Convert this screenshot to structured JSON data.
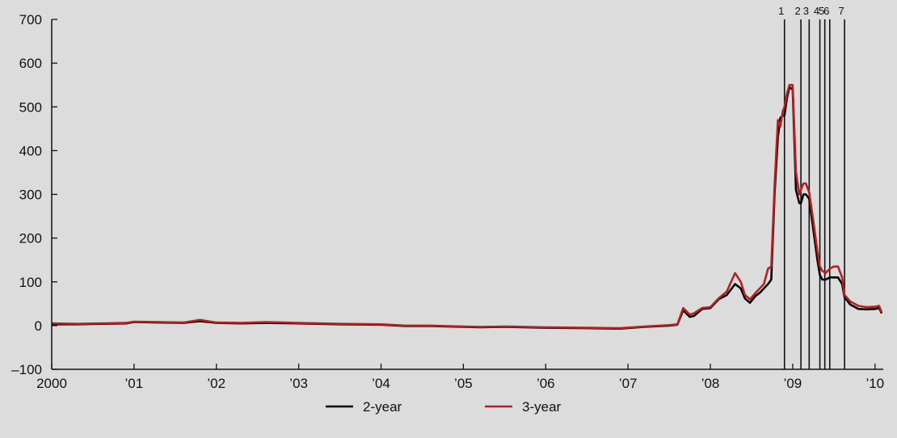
{
  "chart_data": {
    "type": "line",
    "title": "",
    "xlabel": "",
    "ylabel": "",
    "ylim": [
      -100,
      700
    ],
    "y_ticks": [
      "700",
      "600",
      "500",
      "400",
      "300",
      "200",
      "100",
      "0",
      "–100"
    ],
    "x_ticks": [
      "2000",
      "’01",
      "’02",
      "’03",
      "’04",
      "’05",
      "’06",
      "’07",
      "’08",
      "’09",
      "’10"
    ],
    "xlim": [
      2000.0,
      2010.1
    ],
    "grid": false,
    "legend_position": "bottom-center",
    "event_lines": [
      {
        "label": "1",
        "x": 2008.9
      },
      {
        "label": "2",
        "x": 2009.1
      },
      {
        "label": "3",
        "x": 2009.2
      },
      {
        "label": "4",
        "x": 2009.33
      },
      {
        "label": "5",
        "x": 2009.39
      },
      {
        "label": "6",
        "x": 2009.45
      },
      {
        "label": "7",
        "x": 2009.63
      }
    ],
    "series": [
      {
        "name": "2-year",
        "color": "#000000",
        "x": [
          2000.0,
          2000.3,
          2000.6,
          2000.9,
          2001.0,
          2001.3,
          2001.6,
          2001.7,
          2001.8,
          2001.9,
          2002.0,
          2002.3,
          2002.6,
          2003.0,
          2003.5,
          2004.0,
          2004.3,
          2004.6,
          2005.0,
          2005.2,
          2005.5,
          2006.0,
          2006.5,
          2006.9,
          2007.2,
          2007.5,
          2007.6,
          2007.67,
          2007.75,
          2007.8,
          2007.9,
          2008.0,
          2008.1,
          2008.2,
          2008.3,
          2008.37,
          2008.42,
          2008.48,
          2008.55,
          2008.6,
          2008.65,
          2008.7,
          2008.74,
          2008.78,
          2008.82,
          2008.85,
          2008.88,
          2008.9,
          2008.93,
          2008.96,
          2009.0,
          2009.04,
          2009.08,
          2009.1,
          2009.13,
          2009.16,
          2009.2,
          2009.25,
          2009.3,
          2009.33,
          2009.36,
          2009.4,
          2009.45,
          2009.5,
          2009.55,
          2009.6,
          2009.63,
          2009.7,
          2009.8,
          2009.9,
          2010.0,
          2010.05,
          2010.08
        ],
        "values": [
          3,
          3,
          4,
          5,
          8,
          7,
          6,
          8,
          10,
          8,
          6,
          5,
          6,
          5,
          3,
          2,
          -1,
          -1,
          -3,
          -4,
          -3,
          -5,
          -6,
          -7,
          -3,
          0,
          2,
          35,
          20,
          22,
          38,
          40,
          60,
          70,
          95,
          85,
          62,
          52,
          68,
          75,
          85,
          95,
          105,
          300,
          430,
          475,
          480,
          480,
          520,
          545,
          540,
          310,
          280,
          280,
          300,
          300,
          290,
          220,
          150,
          115,
          105,
          105,
          110,
          110,
          110,
          95,
          65,
          48,
          38,
          37,
          38,
          40,
          28
        ]
      },
      {
        "name": "3-year",
        "color": "#b22222",
        "x": [
          2000.0,
          2000.3,
          2000.6,
          2000.9,
          2001.0,
          2001.3,
          2001.6,
          2001.7,
          2001.8,
          2001.9,
          2002.0,
          2002.3,
          2002.6,
          2003.0,
          2003.5,
          2004.0,
          2004.3,
          2004.6,
          2005.0,
          2005.2,
          2005.5,
          2006.0,
          2006.5,
          2006.9,
          2007.2,
          2007.5,
          2007.6,
          2007.67,
          2007.75,
          2007.8,
          2007.9,
          2008.0,
          2008.1,
          2008.2,
          2008.3,
          2008.37,
          2008.42,
          2008.48,
          2008.55,
          2008.6,
          2008.65,
          2008.7,
          2008.74,
          2008.78,
          2008.82,
          2008.85,
          2008.88,
          2008.9,
          2008.93,
          2008.96,
          2009.0,
          2009.04,
          2009.08,
          2009.1,
          2009.13,
          2009.16,
          2009.2,
          2009.25,
          2009.3,
          2009.33,
          2009.36,
          2009.4,
          2009.45,
          2009.5,
          2009.55,
          2009.6,
          2009.63,
          2009.7,
          2009.8,
          2009.9,
          2010.0,
          2010.05,
          2010.08
        ],
        "values": [
          5,
          4,
          5,
          6,
          9,
          8,
          7,
          10,
          13,
          10,
          7,
          6,
          8,
          6,
          4,
          3,
          0,
          0,
          -2,
          -3,
          -2,
          -4,
          -5,
          -6,
          -2,
          1,
          3,
          40,
          25,
          28,
          40,
          42,
          62,
          78,
          120,
          100,
          70,
          60,
          75,
          85,
          95,
          130,
          135,
          320,
          470,
          455,
          490,
          500,
          530,
          550,
          550,
          350,
          300,
          310,
          325,
          325,
          305,
          240,
          170,
          135,
          125,
          120,
          130,
          135,
          135,
          110,
          70,
          55,
          45,
          42,
          43,
          45,
          30
        ]
      }
    ]
  }
}
